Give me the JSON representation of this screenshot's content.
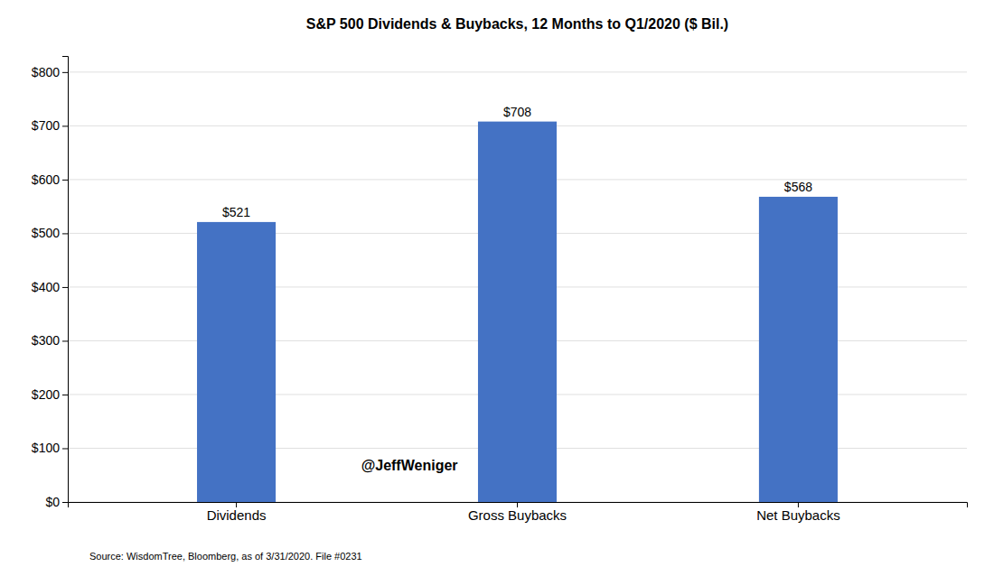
{
  "chart_data": {
    "type": "bar",
    "title": "S&P 500 Dividends & Buybacks, 12 Months to Q1/2020 ($ Bil.)",
    "categories": [
      "Dividends",
      "Gross Buybacks",
      "Net Buybacks"
    ],
    "values": [
      521,
      708,
      568
    ],
    "value_labels": [
      "$521",
      "$708",
      "$568"
    ],
    "data_labels": true,
    "color": "#4472C4",
    "ylim": [
      0,
      830
    ],
    "yticks": [
      {
        "value": 0,
        "label": "$0"
      },
      {
        "value": 100,
        "label": "$100"
      },
      {
        "value": 200,
        "label": "$200"
      },
      {
        "value": 300,
        "label": "$300"
      },
      {
        "value": 400,
        "label": "$400"
      },
      {
        "value": 500,
        "label": "$500"
      },
      {
        "value": 600,
        "label": "$600"
      },
      {
        "value": 700,
        "label": "$700"
      },
      {
        "value": 800,
        "label": "$800"
      }
    ],
    "grid": true,
    "annotations": [
      "@JeffWeniger",
      "Source: WisdomTree, Bloomberg, as of 3/31/2020. File #0231"
    ]
  }
}
